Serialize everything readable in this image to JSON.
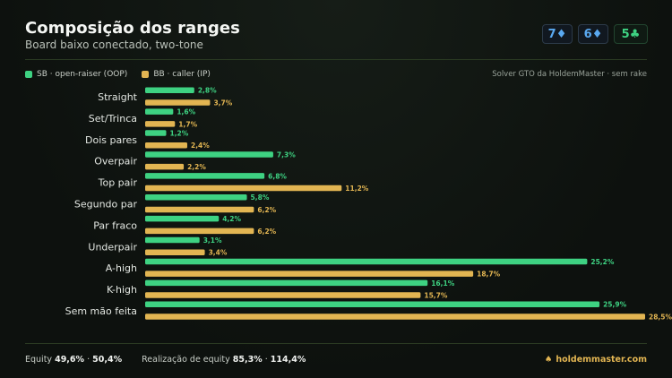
{
  "header": {
    "title": "Composição dos ranges",
    "subtitle": "Board baixo conectado, two-tone",
    "board": [
      {
        "rank": "7",
        "suit": "♦",
        "suit_name": "diamond"
      },
      {
        "rank": "6",
        "suit": "♦",
        "suit_name": "diamond"
      },
      {
        "rank": "5",
        "suit": "♣",
        "suit_name": "club"
      }
    ]
  },
  "legend": {
    "sb_label": "SB · open-raiser (OOP)",
    "bb_label": "BB · caller (IP)",
    "source": "Solver GTO da HoldemMaster · sem rake"
  },
  "colors": {
    "sb": "#3ed282",
    "bb": "#e2b552",
    "background": "#0d110e"
  },
  "chart_data": {
    "type": "bar",
    "orientation": "horizontal",
    "categories": [
      "Straight",
      "Set/Trinca",
      "Dois pares",
      "Overpair",
      "Top pair",
      "Segundo par",
      "Par fraco",
      "Underpair",
      "A-high",
      "K-high",
      "Sem mão feita"
    ],
    "series": [
      {
        "name": "SB · open-raiser (OOP)",
        "values": [
          2.8,
          1.6,
          1.2,
          7.3,
          6.8,
          5.8,
          4.2,
          3.1,
          25.2,
          16.1,
          25.9
        ],
        "labels": [
          "2,8%",
          "1,6%",
          "1,2%",
          "7,3%",
          "6,8%",
          "5,8%",
          "4,2%",
          "3,1%",
          "25,2%",
          "16,1%",
          "25,9%"
        ]
      },
      {
        "name": "BB · caller (IP)",
        "values": [
          3.7,
          1.7,
          2.4,
          2.2,
          11.2,
          6.2,
          6.2,
          3.4,
          18.7,
          15.7,
          28.5
        ],
        "labels": [
          "3,7%",
          "1,7%",
          "2,4%",
          "2,2%",
          "11,2%",
          "6,2%",
          "6,2%",
          "3,4%",
          "18,7%",
          "15,7%",
          "28,5%"
        ]
      }
    ],
    "xlim": [
      0,
      28.5
    ],
    "grid": false,
    "legend_position": "top-left"
  },
  "footer": {
    "equity_label": "Equity",
    "equity_sb": "49,6%",
    "sep1": "·",
    "equity_bb": "50,4%",
    "realization_label": "Realização de equity",
    "realization_sb": "85,3%",
    "sep2": "·",
    "realization_bb": "114,4%",
    "brand_icon": "♠",
    "brand": "holdemmaster.com"
  }
}
